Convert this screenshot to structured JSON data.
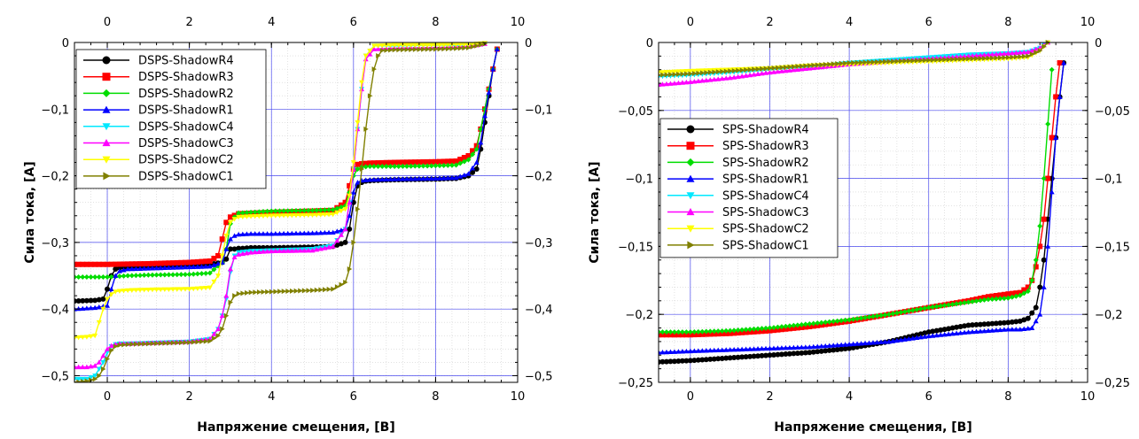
{
  "chart_data": [
    {
      "type": "line",
      "title": "",
      "xlabel": "Напряжение смещения, [В]",
      "ylabel": "Сила тока, [А]",
      "xlim": [
        -0.8,
        10
      ],
      "ylim": [
        -0.51,
        0
      ],
      "xticks": [
        0,
        2,
        4,
        6,
        8,
        10
      ],
      "yticks": [
        0,
        -0.1,
        -0.2,
        -0.3,
        -0.4,
        -0.5
      ],
      "xtick_labels": [
        "0",
        "2",
        "4",
        "6",
        "8",
        "10"
      ],
      "ytick_labels": [
        "0",
        "−0,1",
        "−0,2",
        "−0,3",
        "−0,4",
        "−0,5"
      ],
      "grid": true,
      "mirrored_axes": true,
      "legend_position": "top-left",
      "series": [
        {
          "name": "DSPS-ShadowR4",
          "color": "#000000",
          "marker": "circle",
          "x": [
            -0.8,
            -0.3,
            -0.1,
            0.0,
            0.1,
            0.2,
            0.3,
            0.5,
            1.0,
            2.0,
            2.5,
            2.8,
            2.9,
            3.0,
            3.1,
            3.2,
            3.3,
            3.5,
            4.0,
            5.0,
            5.5,
            5.8,
            5.9,
            6.0,
            6.1,
            6.2,
            6.3,
            6.5,
            7.0,
            8.0,
            8.5,
            8.8,
            9.0,
            9.1,
            9.2,
            9.3,
            9.4,
            9.5
          ],
          "y": [
            -0.388,
            -0.387,
            -0.385,
            -0.37,
            -0.35,
            -0.34,
            -0.338,
            -0.337,
            -0.336,
            -0.334,
            -0.333,
            -0.33,
            -0.325,
            -0.31,
            -0.31,
            -0.309,
            -0.309,
            -0.308,
            -0.308,
            -0.307,
            -0.306,
            -0.3,
            -0.28,
            -0.24,
            -0.215,
            -0.21,
            -0.208,
            -0.207,
            -0.206,
            -0.205,
            -0.204,
            -0.2,
            -0.19,
            -0.16,
            -0.12,
            -0.08,
            -0.04,
            -0.01
          ]
        },
        {
          "name": "DSPS-ShadowR3",
          "color": "#ff0000",
          "marker": "square",
          "x": [
            -0.8,
            0.0,
            1.0,
            2.0,
            2.5,
            2.7,
            2.8,
            2.9,
            3.0,
            3.2,
            4.0,
            5.0,
            5.5,
            5.8,
            5.9,
            6.0,
            6.1,
            6.2,
            6.4,
            7.0,
            8.0,
            8.5,
            8.8,
            9.0,
            9.1,
            9.2,
            9.3,
            9.4,
            9.5
          ],
          "y": [
            -0.333,
            -0.333,
            -0.332,
            -0.33,
            -0.328,
            -0.32,
            -0.295,
            -0.27,
            -0.262,
            -0.257,
            -0.255,
            -0.253,
            -0.252,
            -0.24,
            -0.215,
            -0.19,
            -0.183,
            -0.182,
            -0.181,
            -0.18,
            -0.179,
            -0.178,
            -0.17,
            -0.155,
            -0.13,
            -0.1,
            -0.07,
            -0.04,
            -0.01
          ]
        },
        {
          "name": "DSPS-ShadowR2",
          "color": "#00dd00",
          "marker": "diamond",
          "x": [
            -0.8,
            0.0,
            0.5,
            1.0,
            2.0,
            2.5,
            2.8,
            2.9,
            3.0,
            3.1,
            3.2,
            4.0,
            5.0,
            5.5,
            5.8,
            5.9,
            6.0,
            6.1,
            6.2,
            6.4,
            7.0,
            8.0,
            8.5,
            8.8,
            9.0,
            9.1,
            9.2,
            9.3,
            9.4,
            9.5
          ],
          "y": [
            -0.352,
            -0.352,
            -0.35,
            -0.349,
            -0.348,
            -0.346,
            -0.33,
            -0.31,
            -0.272,
            -0.262,
            -0.256,
            -0.253,
            -0.252,
            -0.251,
            -0.245,
            -0.225,
            -0.2,
            -0.19,
            -0.187,
            -0.186,
            -0.186,
            -0.185,
            -0.184,
            -0.176,
            -0.16,
            -0.13,
            -0.1,
            -0.07,
            -0.04,
            -0.01
          ]
        },
        {
          "name": "DSPS-ShadowR1",
          "color": "#0000ff",
          "marker": "triangle-up",
          "x": [
            -0.8,
            -0.3,
            0.0,
            0.1,
            0.2,
            0.3,
            0.5,
            1.0,
            2.0,
            2.5,
            2.8,
            2.9,
            3.0,
            3.1,
            3.2,
            3.5,
            4.0,
            5.0,
            5.5,
            5.8,
            5.9,
            6.0,
            6.1,
            6.2,
            6.4,
            7.0,
            8.0,
            8.5,
            8.8,
            9.0,
            9.1,
            9.2,
            9.3,
            9.4,
            9.5
          ],
          "y": [
            -0.4,
            -0.398,
            -0.395,
            -0.37,
            -0.35,
            -0.343,
            -0.34,
            -0.339,
            -0.337,
            -0.336,
            -0.33,
            -0.31,
            -0.295,
            -0.29,
            -0.288,
            -0.287,
            -0.287,
            -0.286,
            -0.285,
            -0.28,
            -0.26,
            -0.225,
            -0.21,
            -0.207,
            -0.206,
            -0.205,
            -0.204,
            -0.203,
            -0.197,
            -0.18,
            -0.15,
            -0.11,
            -0.075,
            -0.04,
            -0.01
          ]
        },
        {
          "name": "DSPS-ShadowC4",
          "color": "#00e8ff",
          "marker": "triangle-down",
          "x": [
            -0.8,
            -0.5,
            -0.3,
            -0.2,
            -0.1,
            0.0,
            0.1,
            0.2,
            0.3,
            0.5,
            1.0,
            2.0,
            2.5,
            2.7,
            2.8,
            2.9,
            3.0,
            3.1,
            3.2,
            3.5,
            4.0,
            5.0,
            5.5,
            5.8,
            5.9,
            6.0,
            6.1,
            6.2,
            6.3,
            6.5,
            7.0,
            8.0,
            8.5,
            8.8,
            9.0,
            9.2
          ],
          "y": [
            -0.505,
            -0.505,
            -0.5,
            -0.49,
            -0.48,
            -0.465,
            -0.456,
            -0.453,
            -0.452,
            -0.452,
            -0.451,
            -0.449,
            -0.445,
            -0.43,
            -0.41,
            -0.385,
            -0.345,
            -0.32,
            -0.315,
            -0.313,
            -0.312,
            -0.31,
            -0.305,
            -0.28,
            -0.24,
            -0.19,
            -0.13,
            -0.07,
            -0.02,
            -0.005,
            -0.005,
            -0.004,
            -0.004,
            -0.003,
            -0.003,
            -0.002
          ]
        },
        {
          "name": "DSPS-ShadowC3",
          "color": "#ff00ff",
          "marker": "triangle-up",
          "x": [
            -0.8,
            -0.5,
            -0.3,
            -0.2,
            -0.1,
            0.0,
            0.1,
            0.2,
            0.3,
            0.5,
            1.0,
            2.0,
            2.5,
            2.7,
            2.8,
            2.9,
            3.0,
            3.1,
            3.2,
            3.5,
            4.0,
            5.0,
            5.5,
            5.8,
            5.9,
            6.0,
            6.1,
            6.2,
            6.3,
            6.5,
            7.0,
            8.0,
            8.5,
            8.8,
            9.0,
            9.2
          ],
          "y": [
            -0.487,
            -0.487,
            -0.485,
            -0.48,
            -0.47,
            -0.46,
            -0.455,
            -0.453,
            -0.452,
            -0.452,
            -0.451,
            -0.449,
            -0.445,
            -0.43,
            -0.41,
            -0.38,
            -0.34,
            -0.322,
            -0.318,
            -0.315,
            -0.313,
            -0.312,
            -0.306,
            -0.28,
            -0.24,
            -0.19,
            -0.13,
            -0.07,
            -0.025,
            -0.01,
            -0.009,
            -0.008,
            -0.007,
            -0.006,
            -0.004,
            -0.002
          ]
        },
        {
          "name": "DSPS-ShadowC2",
          "color": "#ffff00",
          "marker": "triangle-down",
          "x": [
            -0.8,
            -0.5,
            -0.3,
            -0.2,
            -0.1,
            0.0,
            0.1,
            0.2,
            0.3,
            0.5,
            1.0,
            2.0,
            2.5,
            2.7,
            2.8,
            2.9,
            3.0,
            3.1,
            3.2,
            3.5,
            4.0,
            5.0,
            5.5,
            5.8,
            5.9,
            6.0,
            6.1,
            6.2,
            6.3,
            6.5,
            7.0,
            8.0,
            8.5,
            8.8,
            9.0,
            9.2
          ],
          "y": [
            -0.443,
            -0.442,
            -0.44,
            -0.42,
            -0.4,
            -0.385,
            -0.378,
            -0.374,
            -0.373,
            -0.372,
            -0.371,
            -0.37,
            -0.368,
            -0.35,
            -0.32,
            -0.29,
            -0.27,
            -0.265,
            -0.262,
            -0.261,
            -0.26,
            -0.259,
            -0.258,
            -0.25,
            -0.23,
            -0.18,
            -0.12,
            -0.06,
            -0.02,
            -0.005,
            -0.004,
            -0.004,
            -0.003,
            -0.003,
            -0.002,
            -0.001
          ]
        },
        {
          "name": "DSPS-ShadowC1",
          "color": "#808000",
          "marker": "triangle-right",
          "x": [
            -0.8,
            -0.5,
            -0.3,
            -0.2,
            -0.1,
            0.0,
            0.1,
            0.2,
            0.3,
            0.5,
            1.0,
            2.0,
            2.5,
            2.7,
            2.8,
            2.9,
            3.0,
            3.1,
            3.2,
            3.5,
            4.0,
            5.0,
            5.5,
            5.8,
            5.9,
            6.0,
            6.1,
            6.2,
            6.3,
            6.4,
            6.5,
            6.6,
            6.7,
            7.0,
            8.0,
            8.5,
            8.8,
            9.0,
            9.2
          ],
          "y": [
            -0.51,
            -0.508,
            -0.505,
            -0.5,
            -0.49,
            -0.475,
            -0.462,
            -0.456,
            -0.454,
            -0.453,
            -0.452,
            -0.45,
            -0.448,
            -0.44,
            -0.43,
            -0.41,
            -0.39,
            -0.38,
            -0.377,
            -0.375,
            -0.374,
            -0.372,
            -0.37,
            -0.36,
            -0.34,
            -0.3,
            -0.25,
            -0.19,
            -0.13,
            -0.08,
            -0.04,
            -0.02,
            -0.012,
            -0.011,
            -0.01,
            -0.009,
            -0.008,
            -0.005,
            -0.002
          ]
        }
      ]
    },
    {
      "type": "line",
      "title": "",
      "xlabel": "Напряжение смещения, [В]",
      "ylabel": "Сила тока, [А]",
      "xlim": [
        -0.8,
        10
      ],
      "ylim": [
        -0.25,
        0
      ],
      "xticks": [
        0,
        2,
        4,
        6,
        8,
        10
      ],
      "yticks": [
        0,
        -0.05,
        -0.1,
        -0.15,
        -0.2,
        -0.25
      ],
      "xtick_labels": [
        "0",
        "2",
        "4",
        "6",
        "8",
        "10"
      ],
      "ytick_labels": [
        "0",
        "−0,05",
        "−0,1",
        "−0,15",
        "−0,2",
        "−0,25"
      ],
      "grid": true,
      "mirrored_axes": true,
      "legend_position": "middle-left",
      "series": [
        {
          "name": "SPS-ShadowR4",
          "color": "#000000",
          "marker": "circle",
          "x": [
            -0.8,
            0.0,
            1.0,
            2.0,
            3.0,
            4.0,
            5.0,
            6.0,
            7.0,
            7.5,
            8.0,
            8.3,
            8.5,
            8.7,
            8.8,
            8.9,
            9.0,
            9.1,
            9.2,
            9.3,
            9.4
          ],
          "y": [
            -0.235,
            -0.234,
            -0.232,
            -0.23,
            -0.228,
            -0.225,
            -0.22,
            -0.213,
            -0.208,
            -0.207,
            -0.206,
            -0.205,
            -0.203,
            -0.195,
            -0.18,
            -0.16,
            -0.13,
            -0.1,
            -0.07,
            -0.04,
            -0.015
          ]
        },
        {
          "name": "SPS-ShadowR3",
          "color": "#ff0000",
          "marker": "square",
          "x": [
            -0.8,
            0.0,
            1.0,
            2.0,
            3.0,
            4.0,
            5.0,
            6.0,
            7.0,
            7.5,
            8.0,
            8.3,
            8.5,
            8.6,
            8.7,
            8.8,
            8.9,
            9.0,
            9.1,
            9.2,
            9.3
          ],
          "y": [
            -0.215,
            -0.215,
            -0.214,
            -0.212,
            -0.209,
            -0.205,
            -0.2,
            -0.195,
            -0.19,
            -0.187,
            -0.185,
            -0.184,
            -0.18,
            -0.175,
            -0.165,
            -0.15,
            -0.13,
            -0.1,
            -0.07,
            -0.04,
            -0.015
          ]
        },
        {
          "name": "SPS-ShadowR2",
          "color": "#00dd00",
          "marker": "diamond",
          "x": [
            -0.8,
            0.0,
            1.0,
            2.0,
            3.0,
            4.0,
            5.0,
            6.0,
            7.0,
            7.5,
            8.0,
            8.3,
            8.5,
            8.6,
            8.7,
            8.8,
            8.9,
            9.0,
            9.1
          ],
          "y": [
            -0.213,
            -0.213,
            -0.212,
            -0.21,
            -0.207,
            -0.204,
            -0.2,
            -0.195,
            -0.191,
            -0.189,
            -0.188,
            -0.186,
            -0.183,
            -0.175,
            -0.16,
            -0.135,
            -0.1,
            -0.06,
            -0.02
          ]
        },
        {
          "name": "SPS-ShadowR1",
          "color": "#0000ff",
          "marker": "triangle-up",
          "x": [
            -0.8,
            0.0,
            1.0,
            2.0,
            3.0,
            4.0,
            5.0,
            6.0,
            7.0,
            7.5,
            8.0,
            8.3,
            8.6,
            8.8,
            8.9,
            9.0,
            9.1,
            9.2,
            9.3,
            9.4
          ],
          "y": [
            -0.228,
            -0.227,
            -0.226,
            -0.225,
            -0.224,
            -0.222,
            -0.22,
            -0.216,
            -0.213,
            -0.212,
            -0.211,
            -0.211,
            -0.21,
            -0.2,
            -0.18,
            -0.15,
            -0.11,
            -0.07,
            -0.04,
            -0.015
          ]
        },
        {
          "name": "SPS-ShadowC4",
          "color": "#00e8ff",
          "marker": "triangle-down",
          "x": [
            -0.8,
            0.0,
            1.0,
            2.0,
            3.0,
            4.0,
            5.0,
            6.0,
            7.0,
            8.0,
            8.5,
            8.8,
            9.0
          ],
          "y": [
            -0.025,
            -0.024,
            -0.022,
            -0.02,
            -0.018,
            -0.015,
            -0.013,
            -0.011,
            -0.009,
            -0.008,
            -0.007,
            -0.004,
            0.0
          ]
        },
        {
          "name": "SPS-ShadowC3",
          "color": "#ff00ff",
          "marker": "triangle-up",
          "x": [
            -0.8,
            0.0,
            1.0,
            2.0,
            3.0,
            4.0,
            5.0,
            6.0,
            7.0,
            8.0,
            8.5,
            8.8,
            9.0
          ],
          "y": [
            -0.031,
            -0.029,
            -0.026,
            -0.022,
            -0.019,
            -0.016,
            -0.014,
            -0.012,
            -0.01,
            -0.008,
            -0.007,
            -0.004,
            0.0
          ]
        },
        {
          "name": "SPS-ShadowC2",
          "color": "#ffff00",
          "marker": "triangle-down",
          "x": [
            -0.8,
            0.0,
            1.0,
            2.0,
            3.0,
            4.0,
            5.0,
            6.0,
            7.0,
            8.0,
            8.5,
            8.8,
            9.0
          ],
          "y": [
            -0.022,
            -0.021,
            -0.02,
            -0.019,
            -0.017,
            -0.016,
            -0.015,
            -0.014,
            -0.013,
            -0.012,
            -0.011,
            -0.006,
            0.0
          ]
        },
        {
          "name": "SPS-ShadowC1",
          "color": "#808000",
          "marker": "triangle-right",
          "x": [
            -0.8,
            0.0,
            1.0,
            2.0,
            3.0,
            4.0,
            5.0,
            6.0,
            7.0,
            8.0,
            8.5,
            8.8,
            9.0
          ],
          "y": [
            -0.024,
            -0.023,
            -0.021,
            -0.019,
            -0.017,
            -0.015,
            -0.014,
            -0.013,
            -0.012,
            -0.011,
            -0.01,
            -0.006,
            0.0
          ]
        }
      ]
    }
  ]
}
